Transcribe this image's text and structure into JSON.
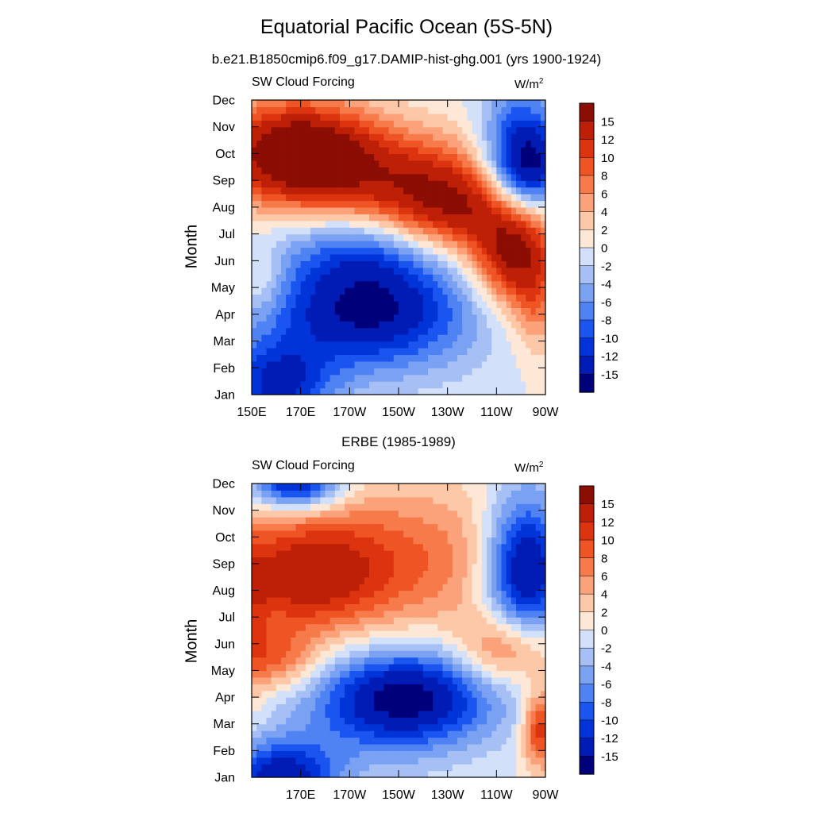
{
  "header": {
    "title": "Equatorial Pacific Ocean (5S-5N)",
    "subtitle": "b.e21.B1850cmip6.f09_g17.DAMIP-hist-ghg.001 (yrs 1900-1924)",
    "lower_title": "ERBE (1985-1989)"
  },
  "chart_data": [
    {
      "type": "heatmap",
      "title": "b.e21.B1850cmip6.f09_g17.DAMIP-hist-ghg.001 (yrs 1900-1924)",
      "left_label": "SW Cloud Forcing",
      "units_base": "W/m",
      "units_sup": "2",
      "ylabel": "Month",
      "y_ticks": [
        "Jan",
        "Feb",
        "Mar",
        "Apr",
        "May",
        "Jun",
        "Jul",
        "Aug",
        "Sep",
        "Oct",
        "Nov",
        "Dec"
      ],
      "x_ticks": [
        "150E",
        "170E",
        "170W",
        "150W",
        "130W",
        "110W",
        "90W"
      ],
      "x_range_degE": [
        150,
        270
      ],
      "colorbar_levels": [
        "15",
        "12",
        "10",
        "8",
        "6",
        "4",
        "2",
        "0",
        "-2",
        "-4",
        "-6",
        "-8",
        "-10",
        "-12",
        "-15"
      ],
      "colors": [
        "#00007a",
        "#001cb4",
        "#0034d8",
        "#1a55f0",
        "#4f82f2",
        "#7ba2f2",
        "#a6c0f5",
        "#d2e0fa",
        "#fde8d8",
        "#fcc8a8",
        "#fba27a",
        "#f77a4a",
        "#ee5424",
        "#dd3410",
        "#bd2006",
        "#8c0d04"
      ],
      "field_model": "seasonal cycle: warm tongue propagating westward from Jun at 95W to Oct at 150E; negative Mar-May in west-central basin; strong negative Aug-Oct near 95W",
      "approx_extremes": {
        "min": -15,
        "max": 15
      }
    },
    {
      "type": "heatmap",
      "title": "ERBE (1985-1989)",
      "left_label": "SW Cloud Forcing",
      "units_base": "W/m",
      "units_sup": "2",
      "ylabel": "Month",
      "y_ticks": [
        "Jan",
        "Feb",
        "Mar",
        "Apr",
        "May",
        "Jun",
        "Jul",
        "Aug",
        "Sep",
        "Oct",
        "Nov",
        "Dec"
      ],
      "x_ticks": [
        "170E",
        "170W",
        "150W",
        "130W",
        "110W",
        "90W"
      ],
      "x_range_degE": [
        150,
        270
      ],
      "colorbar_levels": [
        "15",
        "12",
        "10",
        "8",
        "6",
        "4",
        "2",
        "0",
        "-2",
        "-4",
        "-6",
        "-8",
        "-10",
        "-12",
        "-15"
      ],
      "colors": [
        "#00007a",
        "#001cb4",
        "#0034d8",
        "#1a55f0",
        "#4f82f2",
        "#7ba2f2",
        "#a6c0f5",
        "#d2e0fa",
        "#fde8d8",
        "#fcc8a8",
        "#fba27a",
        "#f77a4a",
        "#ee5424",
        "#dd3410",
        "#bd2006",
        "#8c0d04"
      ],
      "field_model": "negative Mar-May central basin (min near 145W Apr); positive Aug-Sep west; negative Aug-Oct near 95W; positive Feb-Mar near 90W; negative Dec near 165E",
      "approx_extremes": {
        "min": -15,
        "max": 15
      }
    }
  ]
}
